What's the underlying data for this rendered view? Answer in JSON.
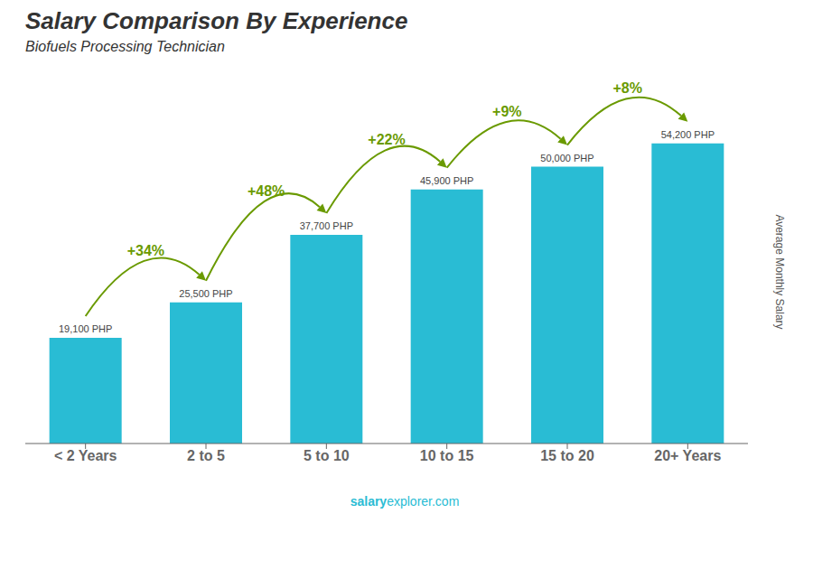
{
  "chart_data": {
    "type": "bar",
    "title": "Salary Comparison By Experience",
    "subtitle": "Biofuels Processing Technician",
    "categories": [
      "< 2 Years",
      "2 to 5",
      "5 to 10",
      "10 to 15",
      "15 to 20",
      "20+ Years"
    ],
    "values": [
      19100,
      25500,
      37700,
      45900,
      50000,
      54200
    ],
    "value_labels": [
      "19,100 PHP",
      "25,500 PHP",
      "37,700 PHP",
      "45,900 PHP",
      "50,000 PHP",
      "54,200 PHP"
    ],
    "data_labels": true,
    "annotations": [
      "+34%",
      "+48%",
      "+22%",
      "+9%",
      "+8%"
    ],
    "ylabel": "Average Monthly Salary",
    "footer": [
      "salary",
      "explorer.com"
    ],
    "color": "#29bcd4",
    "ylim": [
      0,
      62000
    ],
    "tick_labels": "x",
    "grid": false
  }
}
